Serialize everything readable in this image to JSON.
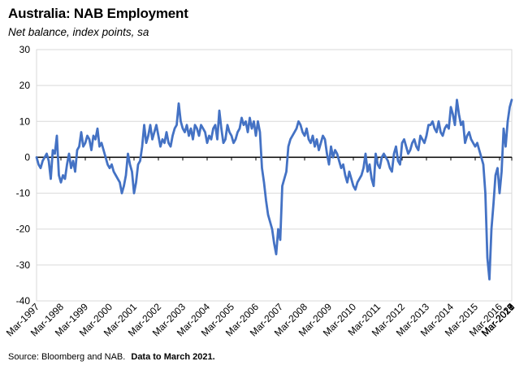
{
  "title": "Australia: NAB Employment",
  "subtitle": "Net balance, index points, sa",
  "source": {
    "text": "Source: Bloomberg and NAB.",
    "note": "Data to March 2021."
  },
  "colors": {
    "line": "#4472C4",
    "grid": "#d9d9d9",
    "axis": "#000000"
  },
  "chart_data": {
    "type": "line",
    "title": "Australia: NAB Employment",
    "subtitle": "Net balance, index points, sa",
    "xlabel": "",
    "ylabel": "",
    "ylim": [
      -40,
      30
    ],
    "yticks": [
      -40,
      -30,
      -20,
      -10,
      0,
      10,
      20,
      30
    ],
    "ytick_labels": [
      "-40",
      "-30",
      "-20",
      "-10",
      "0",
      "10",
      "20",
      "30"
    ],
    "xtick_labels": [
      "Mar-1997",
      "Mar-1998",
      "Mar-1999",
      "Mar-2000",
      "Mar-2001",
      "Mar-2002",
      "Mar-2003",
      "Mar-2004",
      "Mar-2005",
      "Mar-2006",
      "Mar-2007",
      "Mar-2008",
      "Mar-2009",
      "Mar-2010",
      "Mar-2011",
      "Mar-2012",
      "Mar-2013",
      "Mar-2014",
      "Mar-2015",
      "Mar-2016",
      "Mar-2017",
      "Mar-2018",
      "Mar-2019",
      "Mar-2020",
      "Mar-2021"
    ],
    "grid": true,
    "legend": "none",
    "series": [
      {
        "x_start": "Mar-1997",
        "x_end": "Mar-2021",
        "frequency": "monthly",
        "values": [
          0,
          -2,
          -3,
          -1,
          0,
          1,
          -1,
          -6,
          2,
          1,
          6,
          -5,
          -7,
          -5,
          -6,
          -2,
          1,
          -3,
          -1,
          -4,
          2,
          3,
          7,
          3,
          4,
          6,
          5,
          2,
          6,
          5,
          8,
          3,
          4,
          2,
          0,
          -2,
          -3,
          -2,
          -4,
          -5,
          -6,
          -7,
          -10,
          -8,
          -5,
          1,
          -2,
          -4,
          -10,
          -7,
          -2,
          -1,
          3,
          9,
          4,
          6,
          9,
          5,
          7,
          9,
          6,
          3,
          5,
          4,
          7,
          4,
          3,
          6,
          8,
          9,
          15,
          10,
          8,
          7,
          9,
          6,
          8,
          5,
          9,
          8,
          6,
          9,
          8,
          7,
          4,
          6,
          5,
          8,
          9,
          5,
          13,
          8,
          4,
          5,
          9,
          7,
          6,
          4,
          5,
          7,
          8,
          11,
          9,
          10,
          7,
          11,
          8,
          10,
          6,
          10,
          7,
          -3,
          -7,
          -12,
          -16,
          -18,
          -20,
          -24,
          -27,
          -20,
          -23,
          -8,
          -6,
          -4,
          3,
          5,
          6,
          7,
          8,
          10,
          9,
          7,
          6,
          8,
          5,
          4,
          6,
          3,
          5,
          2,
          4,
          6,
          5,
          1,
          -2,
          3,
          0,
          2,
          1,
          -1,
          -3,
          -2,
          -5,
          -7,
          -4,
          -6,
          -8,
          -9,
          -7,
          -6,
          -5,
          -3,
          1,
          -4,
          -2,
          -6,
          -8,
          1,
          -2,
          -3,
          0,
          1,
          0,
          -1,
          -3,
          -4,
          1,
          3,
          -1,
          -2,
          4,
          5,
          3,
          1,
          2,
          4,
          5,
          3,
          2,
          6,
          5,
          4,
          6,
          9,
          9,
          10,
          8,
          7,
          10,
          7,
          6,
          8,
          9,
          8,
          14,
          12,
          9,
          16,
          12,
          9,
          10,
          4,
          6,
          7,
          5,
          4,
          3,
          4,
          2,
          0,
          -2,
          -10,
          -28,
          -34,
          -20,
          -13,
          -5,
          -3,
          -10,
          -4,
          8,
          3,
          10,
          14,
          16
        ]
      }
    ]
  }
}
